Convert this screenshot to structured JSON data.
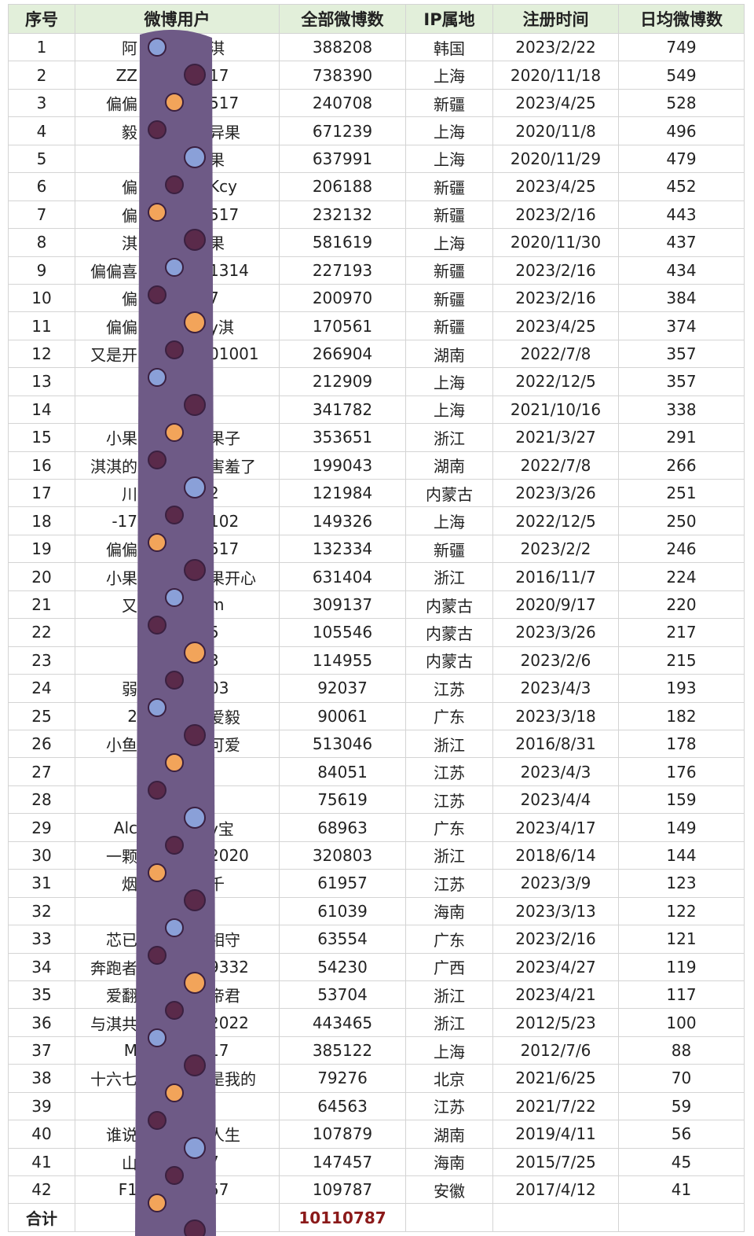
{
  "table": {
    "header": [
      "序号",
      "微博用户",
      "全部微博数",
      "IP属地",
      "注册时间",
      "日均微博数"
    ],
    "rows": [
      [
        1,
        {
          "left": "阿",
          "right": "淇"
        },
        388208,
        "韩国",
        "2023/2/22",
        749
      ],
      [
        2,
        {
          "left": "ZZ",
          "right": "17"
        },
        738390,
        "上海",
        "2020/11/18",
        549
      ],
      [
        3,
        {
          "left": "偏偏",
          "right": "517"
        },
        240708,
        "新疆",
        "2023/4/25",
        528
      ],
      [
        4,
        {
          "left": "毅",
          "right": "异果"
        },
        671239,
        "上海",
        "2020/11/8",
        496
      ],
      [
        5,
        {
          "right": "果"
        },
        637991,
        "上海",
        "2020/11/29",
        479
      ],
      [
        6,
        {
          "left": "偏",
          "right": "Kcy"
        },
        206188,
        "新疆",
        "2023/4/25",
        452
      ],
      [
        7,
        {
          "left": "偏",
          "right": "517"
        },
        232132,
        "新疆",
        "2023/2/16",
        443
      ],
      [
        8,
        {
          "left": "淇",
          "right": "果"
        },
        581619,
        "上海",
        "2020/11/30",
        437
      ],
      [
        9,
        {
          "left": "偏偏喜",
          "right": "1314"
        },
        227193,
        "新疆",
        "2023/2/16",
        434
      ],
      [
        10,
        {
          "left": "偏",
          "right": "7"
        },
        200970,
        "新疆",
        "2023/2/16",
        384
      ],
      [
        11,
        {
          "left": "偏偏",
          "right": "y淇"
        },
        170561,
        "新疆",
        "2023/4/25",
        374
      ],
      [
        12,
        {
          "left": "又是开",
          "right": "01001"
        },
        266904,
        "湖南",
        "2022/7/8",
        357
      ],
      [
        13,
        {},
        212909,
        "上海",
        "2022/12/5",
        357
      ],
      [
        14,
        {},
        341782,
        "上海",
        "2021/10/16",
        338
      ],
      [
        15,
        {
          "left": "小果",
          "right": "果子"
        },
        353651,
        "浙江",
        "2021/3/27",
        291
      ],
      [
        16,
        {
          "left": "淇淇的",
          "right": "害羞了"
        },
        199043,
        "湖南",
        "2022/7/8",
        266
      ],
      [
        17,
        {
          "left": "川",
          "right": "2"
        },
        121984,
        "内蒙古",
        "2023/3/26",
        251
      ],
      [
        18,
        {
          "left": "-17",
          "right": "102"
        },
        149326,
        "上海",
        "2022/12/5",
        250
      ],
      [
        19,
        {
          "left": "偏偏",
          "right": "517"
        },
        132334,
        "新疆",
        "2023/2/2",
        246
      ],
      [
        20,
        {
          "left": "小果",
          "right": "果开心"
        },
        631404,
        "浙江",
        "2016/11/7",
        224
      ],
      [
        21,
        {
          "left": "又",
          "right": "m"
        },
        309137,
        "内蒙古",
        "2020/9/17",
        220
      ],
      [
        22,
        {
          "right": "5"
        },
        105546,
        "内蒙古",
        "2023/3/26",
        217
      ],
      [
        23,
        {
          "right": "3"
        },
        114955,
        "内蒙古",
        "2023/2/6",
        215
      ],
      [
        24,
        {
          "left": "弱",
          "right": "03"
        },
        92037,
        "江苏",
        "2023/4/3",
        193
      ],
      [
        25,
        {
          "left": "2",
          "right": "爱毅"
        },
        90061,
        "广东",
        "2023/3/18",
        182
      ],
      [
        26,
        {
          "left": "小鱼",
          "right": "可爱"
        },
        513046,
        "浙江",
        "2016/8/31",
        178
      ],
      [
        27,
        {},
        84051,
        "江苏",
        "2023/4/3",
        176
      ],
      [
        28,
        {},
        75619,
        "江苏",
        "2023/4/4",
        159
      ],
      [
        29,
        {
          "left": "Alc",
          "right": "y宝"
        },
        68963,
        "广东",
        "2023/4/17",
        149
      ],
      [
        30,
        {
          "left": "一颗",
          "right": "2020"
        },
        320803,
        "浙江",
        "2018/6/14",
        144
      ],
      [
        31,
        {
          "left": "烟",
          "right": "千"
        },
        61957,
        "江苏",
        "2023/3/9",
        123
      ],
      [
        32,
        {},
        61039,
        "海南",
        "2023/3/13",
        122
      ],
      [
        33,
        {
          "left": "芯已",
          "right": "相守"
        },
        63554,
        "广东",
        "2023/2/16",
        121
      ],
      [
        34,
        {
          "left": "奔跑者",
          "right": "9332"
        },
        54230,
        "广西",
        "2023/4/27",
        119
      ],
      [
        35,
        {
          "left": "爱翻",
          "right": "帝君"
        },
        53704,
        "浙江",
        "2023/4/21",
        117
      ],
      [
        36,
        {
          "left": "与淇共",
          "right": "2022"
        },
        443465,
        "浙江",
        "2012/5/23",
        100
      ],
      [
        37,
        {
          "left": "M",
          "right": "17"
        },
        385122,
        "上海",
        "2012/7/6",
        88
      ],
      [
        38,
        {
          "left": "十六七",
          "right": "是我的"
        },
        79276,
        "北京",
        "2021/6/25",
        70
      ],
      [
        39,
        {},
        64563,
        "江苏",
        "2021/7/22",
        59
      ],
      [
        40,
        {
          "left": "谁说",
          "right": "人生"
        },
        107879,
        "湖南",
        "2019/4/11",
        56
      ],
      [
        41,
        {
          "left": "山",
          "right": "7"
        },
        147457,
        "海南",
        "2015/7/25",
        45
      ],
      [
        42,
        {
          "left": "F1",
          "right": "57"
        },
        109787,
        "安徽",
        "2017/4/12",
        41
      ]
    ],
    "total": {
      "label": "合计",
      "value": 10110787
    }
  }
}
